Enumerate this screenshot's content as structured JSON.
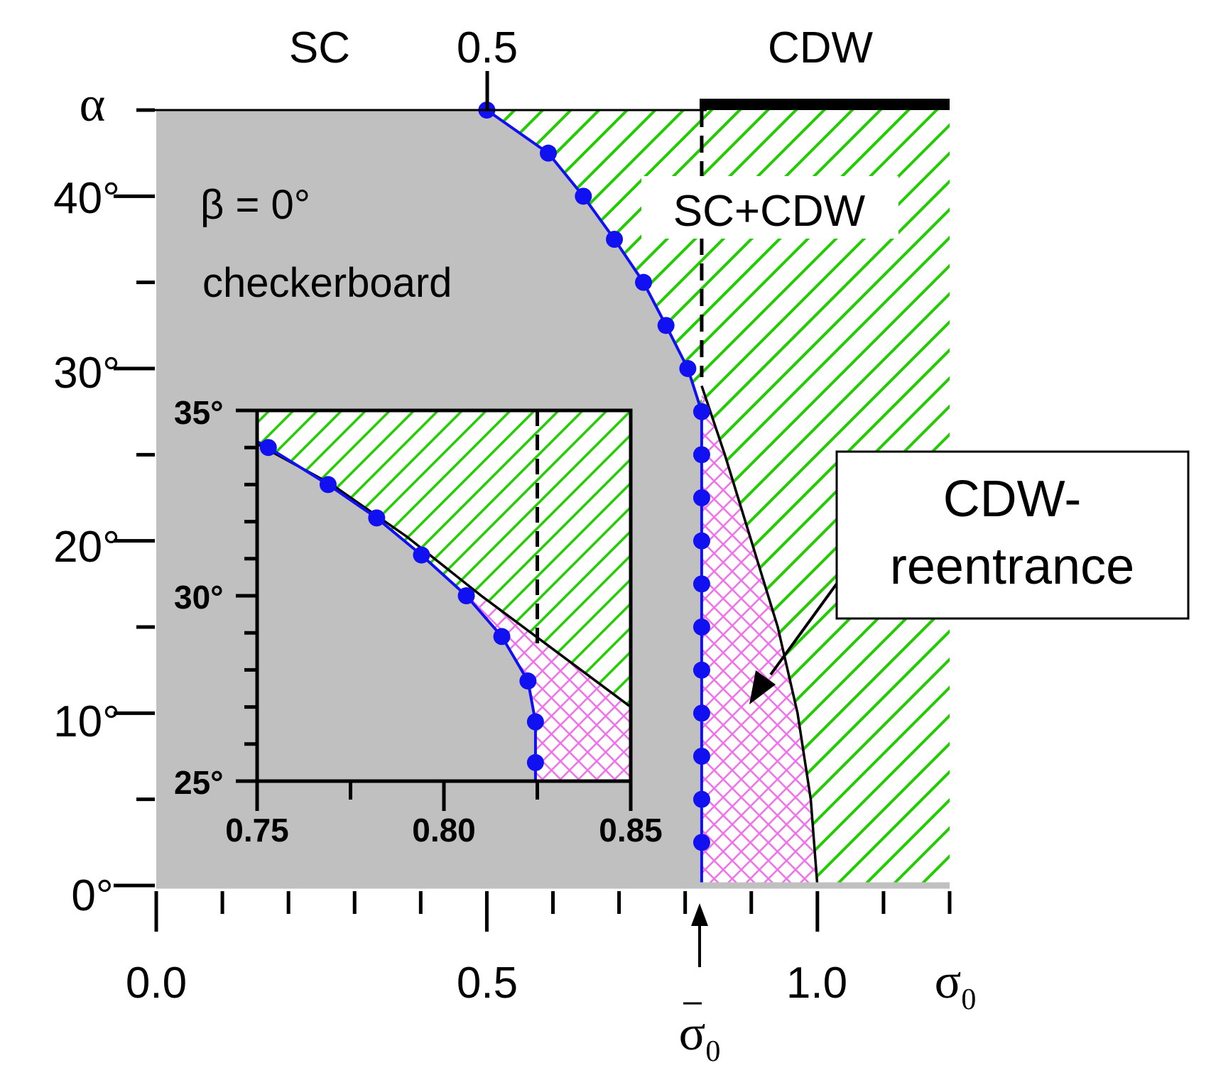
{
  "chart_data": [
    {
      "type": "phase-diagram",
      "xlabel": "σ0",
      "ylabel": "α",
      "xlim": [
        0.0,
        1.2
      ],
      "ylim": [
        0,
        45
      ],
      "x_ticks": [
        "0.0",
        "0.5",
        "1.0"
      ],
      "y_ticks": [
        "0°",
        "10°",
        "20°",
        "30°",
        "40°"
      ],
      "y_tick_values": [
        0,
        10,
        20,
        30,
        40
      ],
      "top_labels": {
        "sc": "SC",
        "mid": "0.5",
        "cdw": "CDW"
      },
      "sigma_bar_label": "σ0",
      "sigma_bar_value": 0.825,
      "annotation_title": "β = 0°",
      "annotation_subtitle": "checkerboard",
      "region_label": "SC+CDW",
      "reentrance_label": [
        "CDW-",
        "reentrance"
      ],
      "series": [
        {
          "name": "SC boundary (blue, with markers)",
          "color": "#1010f0",
          "points": [
            [
              0.5,
              45
            ],
            [
              0.593,
              42.5
            ],
            [
              0.646,
              40.0
            ],
            [
              0.693,
              37.5
            ],
            [
              0.737,
              35.0
            ],
            [
              0.771,
              32.5
            ],
            [
              0.804,
              30.0
            ],
            [
              0.825,
              27.5
            ],
            [
              0.825,
              25.0
            ],
            [
              0.825,
              22.5
            ],
            [
              0.825,
              20.0
            ],
            [
              0.825,
              17.5
            ],
            [
              0.825,
              15.0
            ],
            [
              0.825,
              12.5
            ],
            [
              0.825,
              10.0
            ],
            [
              0.825,
              7.5
            ],
            [
              0.825,
              5.0
            ],
            [
              0.825,
              2.5
            ],
            [
              0.825,
              0.0
            ]
          ]
        },
        {
          "name": "CDW boundary (black)",
          "color": "#000000",
          "points": [
            [
              0.825,
              29.0
            ],
            [
              0.86,
              25.0
            ],
            [
              0.9,
              20.0
            ],
            [
              0.94,
              15.0
            ],
            [
              0.97,
              10.0
            ],
            [
              0.99,
              5.0
            ],
            [
              1.0,
              0.0
            ]
          ]
        }
      ]
    },
    {
      "type": "phase-diagram-inset",
      "xlim": [
        0.75,
        0.85
      ],
      "ylim": [
        25,
        35
      ],
      "x_ticks": [
        "0.75",
        "0.80",
        "0.85"
      ],
      "y_ticks": [
        "25°",
        "30°",
        "35°"
      ],
      "y_tick_values": [
        25,
        30,
        35
      ],
      "dashed_x": 0.825,
      "series": [
        {
          "name": "SC boundary (blue, with markers)",
          "color": "#1010f0",
          "points": [
            [
              0.753,
              34.0
            ],
            [
              0.769,
              33.0
            ],
            [
              0.782,
              32.1
            ],
            [
              0.794,
              31.1
            ],
            [
              0.806,
              30.0
            ],
            [
              0.8155,
              28.9
            ],
            [
              0.8225,
              27.7
            ],
            [
              0.8245,
              26.6
            ],
            [
              0.8245,
              25.5
            ],
            [
              0.8245,
              24.9
            ]
          ]
        },
        {
          "name": "CDW boundary (black)",
          "color": "#000000",
          "points": [
            [
              0.75,
              34.1
            ],
            [
              0.77,
              33.0
            ],
            [
              0.79,
              31.6
            ],
            [
              0.81,
              30.0
            ],
            [
              0.83,
              28.5
            ],
            [
              0.85,
              27.0
            ]
          ]
        }
      ]
    }
  ]
}
